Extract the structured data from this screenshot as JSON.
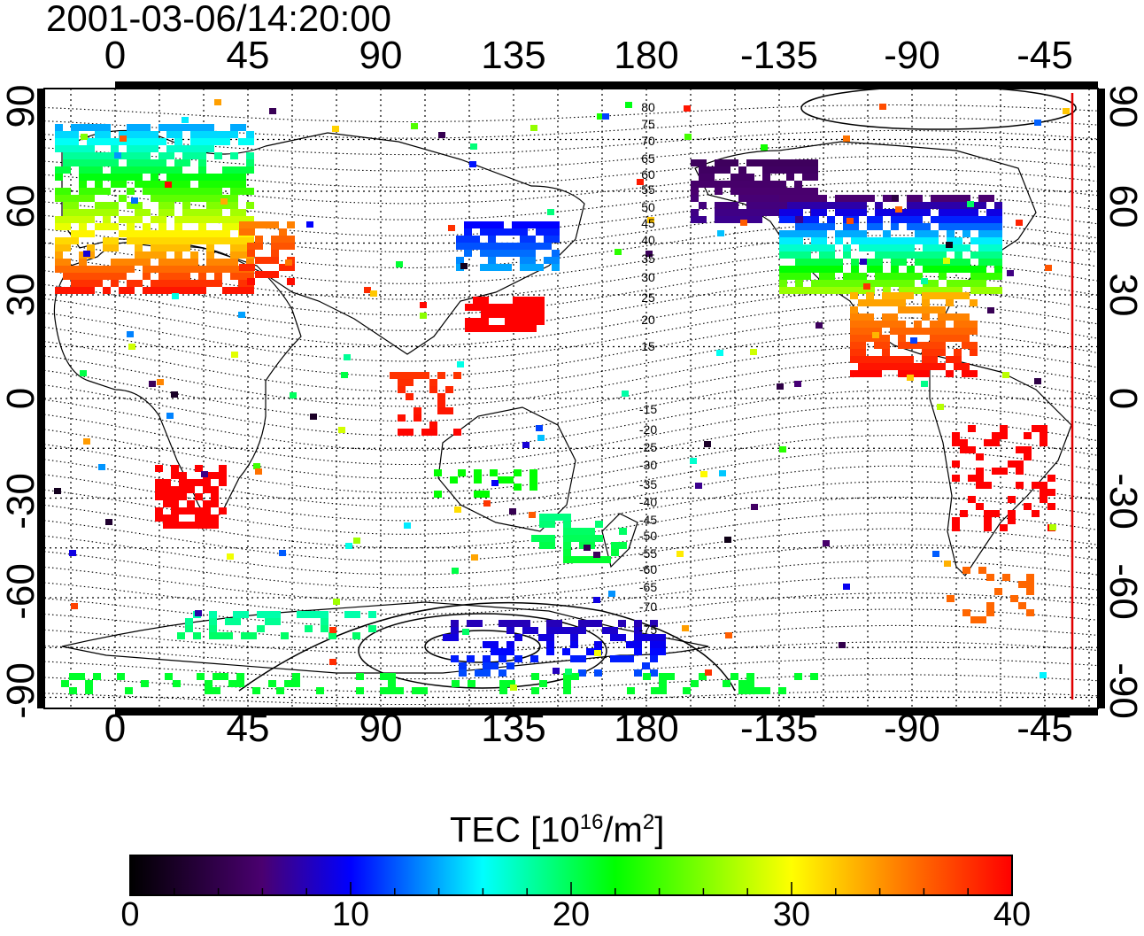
{
  "timestamp": "2001-03-06/14:20:00",
  "map": {
    "lon_ticks": [
      "0",
      "45",
      "90",
      "135",
      "180",
      "-135",
      "-90",
      "-45"
    ],
    "lat_ticks": [
      "90",
      "60",
      "30",
      "0",
      "-30",
      "-60",
      "-90"
    ],
    "contour_labels_north": [
      "80",
      "75",
      "70",
      "65",
      "60",
      "55",
      "50",
      "45",
      "40",
      "35",
      "30",
      "25",
      "20",
      "15"
    ],
    "contour_labels_south": [
      "-15",
      "-20",
      "-25",
      "-30",
      "-35",
      "-40",
      "-45",
      "-50",
      "-55",
      "-60",
      "-65",
      "-70",
      "-75"
    ],
    "grid": true,
    "terminator_color": "#e00000"
  },
  "colorbar": {
    "title": "TEC  [10",
    "title_exp": "16",
    "title_mid": "/m",
    "title_exp2": "2",
    "title_end": "]",
    "ticks": [
      "0",
      "10",
      "20",
      "30",
      "40"
    ],
    "range": [
      0,
      40
    ]
  }
}
